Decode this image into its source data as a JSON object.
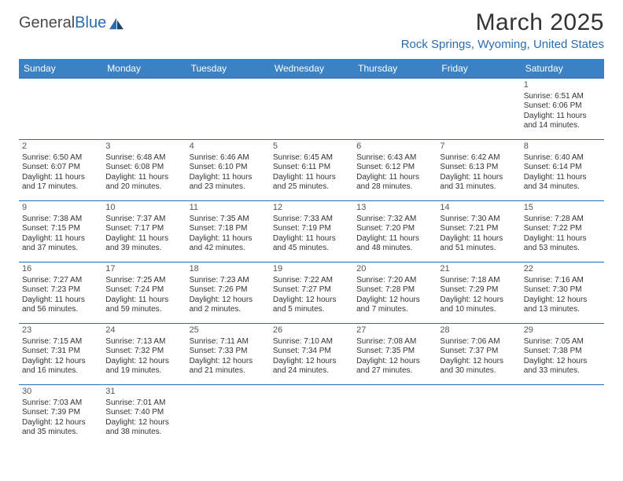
{
  "logo": {
    "text_part1": "General",
    "text_part2": "Blue"
  },
  "header": {
    "title": "March 2025",
    "location": "Rock Springs, Wyoming, United States"
  },
  "weekdays": [
    "Sunday",
    "Monday",
    "Tuesday",
    "Wednesday",
    "Thursday",
    "Friday",
    "Saturday"
  ],
  "colors": {
    "header_bg": "#3b82c4",
    "accent": "#2a6cb0",
    "text": "#333333",
    "background": "#ffffff"
  },
  "calendar": {
    "first_weekday_index": 6,
    "days": [
      {
        "n": 1,
        "sunrise": "6:51 AM",
        "sunset": "6:06 PM",
        "daylight": "11 hours and 14 minutes."
      },
      {
        "n": 2,
        "sunrise": "6:50 AM",
        "sunset": "6:07 PM",
        "daylight": "11 hours and 17 minutes."
      },
      {
        "n": 3,
        "sunrise": "6:48 AM",
        "sunset": "6:08 PM",
        "daylight": "11 hours and 20 minutes."
      },
      {
        "n": 4,
        "sunrise": "6:46 AM",
        "sunset": "6:10 PM",
        "daylight": "11 hours and 23 minutes."
      },
      {
        "n": 5,
        "sunrise": "6:45 AM",
        "sunset": "6:11 PM",
        "daylight": "11 hours and 25 minutes."
      },
      {
        "n": 6,
        "sunrise": "6:43 AM",
        "sunset": "6:12 PM",
        "daylight": "11 hours and 28 minutes."
      },
      {
        "n": 7,
        "sunrise": "6:42 AM",
        "sunset": "6:13 PM",
        "daylight": "11 hours and 31 minutes."
      },
      {
        "n": 8,
        "sunrise": "6:40 AM",
        "sunset": "6:14 PM",
        "daylight": "11 hours and 34 minutes."
      },
      {
        "n": 9,
        "sunrise": "7:38 AM",
        "sunset": "7:15 PM",
        "daylight": "11 hours and 37 minutes."
      },
      {
        "n": 10,
        "sunrise": "7:37 AM",
        "sunset": "7:17 PM",
        "daylight": "11 hours and 39 minutes."
      },
      {
        "n": 11,
        "sunrise": "7:35 AM",
        "sunset": "7:18 PM",
        "daylight": "11 hours and 42 minutes."
      },
      {
        "n": 12,
        "sunrise": "7:33 AM",
        "sunset": "7:19 PM",
        "daylight": "11 hours and 45 minutes."
      },
      {
        "n": 13,
        "sunrise": "7:32 AM",
        "sunset": "7:20 PM",
        "daylight": "11 hours and 48 minutes."
      },
      {
        "n": 14,
        "sunrise": "7:30 AM",
        "sunset": "7:21 PM",
        "daylight": "11 hours and 51 minutes."
      },
      {
        "n": 15,
        "sunrise": "7:28 AM",
        "sunset": "7:22 PM",
        "daylight": "11 hours and 53 minutes."
      },
      {
        "n": 16,
        "sunrise": "7:27 AM",
        "sunset": "7:23 PM",
        "daylight": "11 hours and 56 minutes."
      },
      {
        "n": 17,
        "sunrise": "7:25 AM",
        "sunset": "7:24 PM",
        "daylight": "11 hours and 59 minutes."
      },
      {
        "n": 18,
        "sunrise": "7:23 AM",
        "sunset": "7:26 PM",
        "daylight": "12 hours and 2 minutes."
      },
      {
        "n": 19,
        "sunrise": "7:22 AM",
        "sunset": "7:27 PM",
        "daylight": "12 hours and 5 minutes."
      },
      {
        "n": 20,
        "sunrise": "7:20 AM",
        "sunset": "7:28 PM",
        "daylight": "12 hours and 7 minutes."
      },
      {
        "n": 21,
        "sunrise": "7:18 AM",
        "sunset": "7:29 PM",
        "daylight": "12 hours and 10 minutes."
      },
      {
        "n": 22,
        "sunrise": "7:16 AM",
        "sunset": "7:30 PM",
        "daylight": "12 hours and 13 minutes."
      },
      {
        "n": 23,
        "sunrise": "7:15 AM",
        "sunset": "7:31 PM",
        "daylight": "12 hours and 16 minutes."
      },
      {
        "n": 24,
        "sunrise": "7:13 AM",
        "sunset": "7:32 PM",
        "daylight": "12 hours and 19 minutes."
      },
      {
        "n": 25,
        "sunrise": "7:11 AM",
        "sunset": "7:33 PM",
        "daylight": "12 hours and 21 minutes."
      },
      {
        "n": 26,
        "sunrise": "7:10 AM",
        "sunset": "7:34 PM",
        "daylight": "12 hours and 24 minutes."
      },
      {
        "n": 27,
        "sunrise": "7:08 AM",
        "sunset": "7:35 PM",
        "daylight": "12 hours and 27 minutes."
      },
      {
        "n": 28,
        "sunrise": "7:06 AM",
        "sunset": "7:37 PM",
        "daylight": "12 hours and 30 minutes."
      },
      {
        "n": 29,
        "sunrise": "7:05 AM",
        "sunset": "7:38 PM",
        "daylight": "12 hours and 33 minutes."
      },
      {
        "n": 30,
        "sunrise": "7:03 AM",
        "sunset": "7:39 PM",
        "daylight": "12 hours and 35 minutes."
      },
      {
        "n": 31,
        "sunrise": "7:01 AM",
        "sunset": "7:40 PM",
        "daylight": "12 hours and 38 minutes."
      }
    ]
  },
  "labels": {
    "sunrise": "Sunrise:",
    "sunset": "Sunset:",
    "daylight": "Daylight:"
  }
}
